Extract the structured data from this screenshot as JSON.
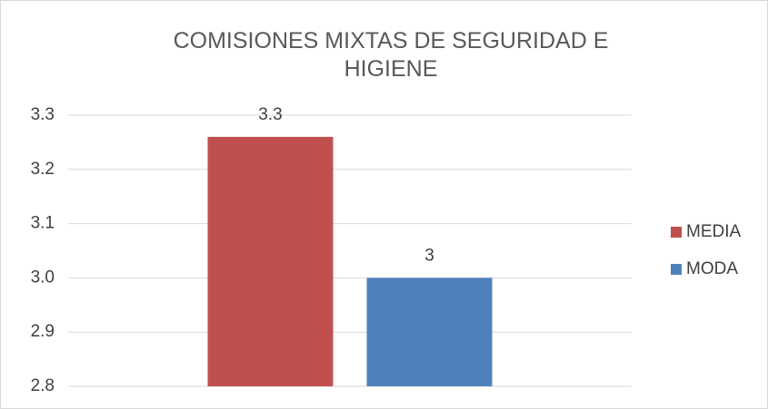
{
  "chart_data": {
    "type": "bar",
    "title": "COMISIONES MIXTAS DE SEGURIDAD E HIGIENE",
    "categories": [
      null
    ],
    "series": [
      {
        "name": "MEDIA",
        "color": "#c0504d",
        "values": [
          3.26
        ],
        "value_labels": [
          "3.3"
        ]
      },
      {
        "name": "MODA",
        "color": "#4f81bd",
        "values": [
          3
        ],
        "value_labels": [
          "3"
        ]
      }
    ],
    "ylim": [
      2.8,
      3.3
    ],
    "yticks": [
      2.8,
      2.9,
      {
        "value": 3,
        "label": "3.0"
      },
      3.1,
      3.2,
      3.3
    ],
    "grid": true,
    "legend": "right"
  }
}
